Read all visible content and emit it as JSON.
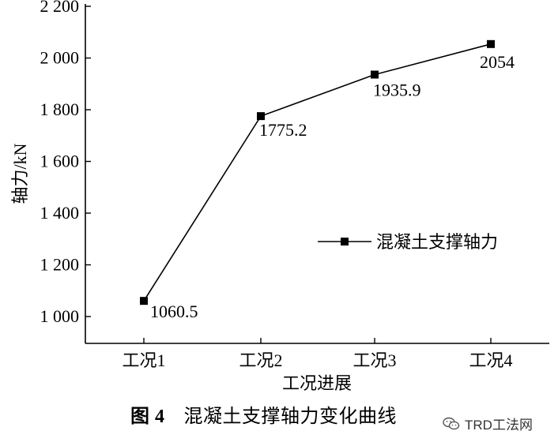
{
  "chart_data": {
    "type": "line",
    "categories": [
      "工况1",
      "工况2",
      "工况3",
      "工况4"
    ],
    "series": [
      {
        "name": "混凝土支撑轴力",
        "values": [
          1060.5,
          1775.2,
          1935.9,
          2054
        ],
        "labels": [
          "1060.5",
          "1775.2",
          "1935.9",
          "2054"
        ]
      }
    ],
    "ylabel": "轴力/kN",
    "xlabel": "工况进展",
    "ylim": [
      900,
      2200
    ],
    "yticks": [
      {
        "value": 1000,
        "label": "1 000"
      },
      {
        "value": 1200,
        "label": "1 200"
      },
      {
        "value": 1400,
        "label": "1 400"
      },
      {
        "value": 1600,
        "label": "1 600"
      },
      {
        "value": 1800,
        "label": "1 800"
      },
      {
        "value": 2000,
        "label": "2 000"
      },
      {
        "value": 2200,
        "label": "2 200"
      }
    ],
    "legend_position": "center-right",
    "grid": false,
    "line_color": "#000000"
  },
  "caption": {
    "number": "图 4",
    "text": "混凝土支撑轴力变化曲线"
  },
  "watermark": {
    "text": "TRD工法网",
    "icon": "wechat-icon"
  }
}
